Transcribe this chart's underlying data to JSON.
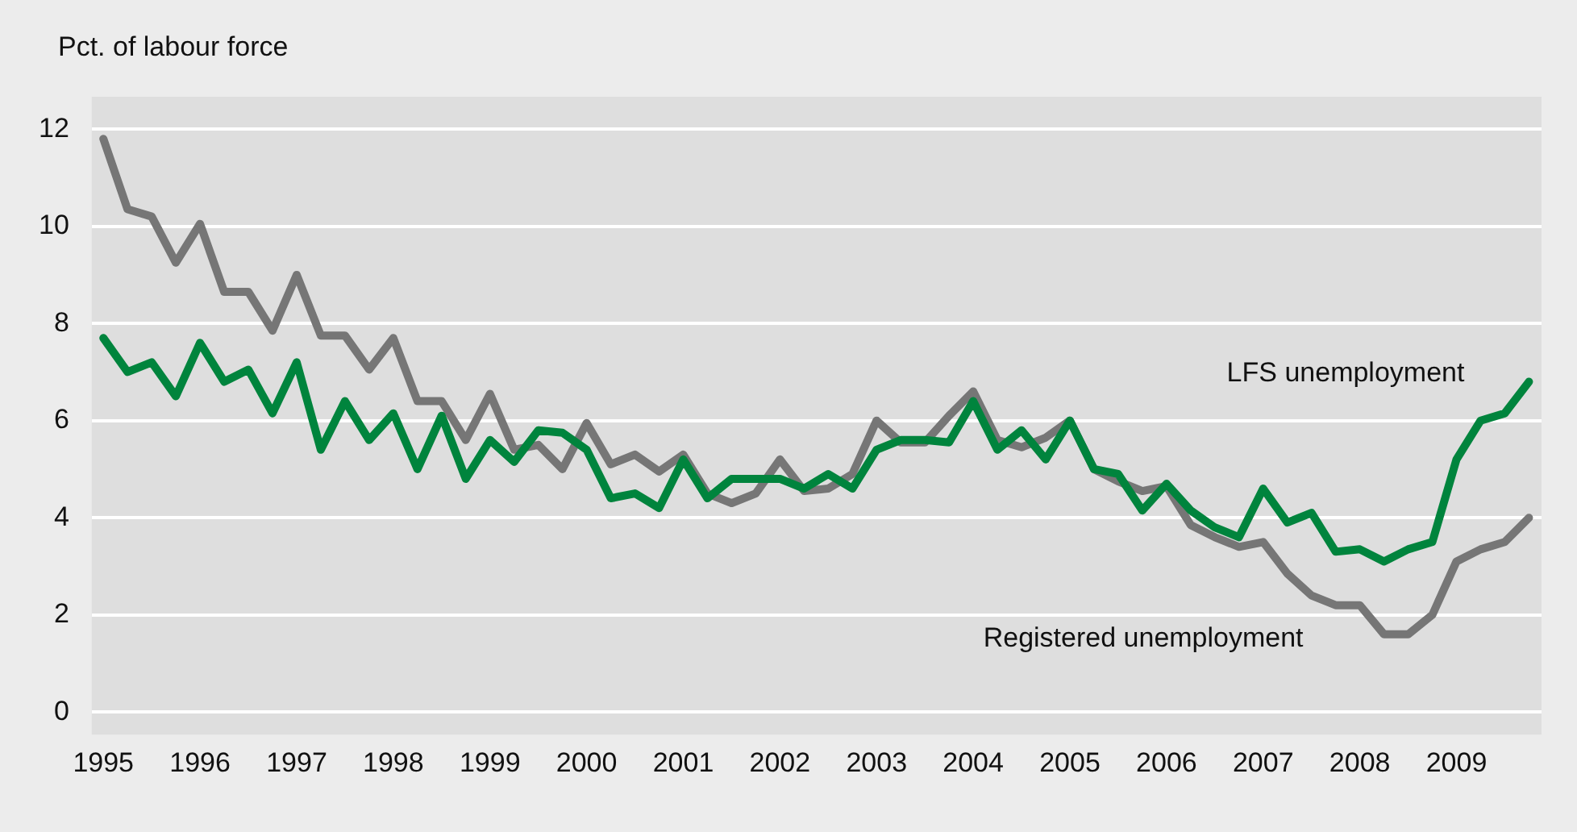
{
  "chart_data": {
    "type": "line",
    "ylabel": "Pct. of labour force",
    "x": [
      1995,
      1995.25,
      1995.5,
      1995.75,
      1996,
      1996.25,
      1996.5,
      1996.75,
      1997,
      1997.25,
      1997.5,
      1997.75,
      1998,
      1998.25,
      1998.5,
      1998.75,
      1999,
      1999.25,
      1999.5,
      1999.75,
      2000,
      2000.25,
      2000.5,
      2000.75,
      2001,
      2001.25,
      2001.5,
      2001.75,
      2002,
      2002.25,
      2002.5,
      2002.75,
      2003,
      2003.25,
      2003.5,
      2003.75,
      2004,
      2004.25,
      2004.5,
      2004.75,
      2005,
      2005.25,
      2005.5,
      2005.75,
      2006,
      2006.25,
      2006.5,
      2006.75,
      2007,
      2007.25,
      2007.5,
      2007.75,
      2008,
      2008.25,
      2008.5,
      2008.75,
      2009,
      2009.25,
      2009.5,
      2009.75
    ],
    "series": [
      {
        "name": "LFS unemployment",
        "color": "#00843d",
        "values": [
          7.7,
          7.0,
          7.2,
          6.5,
          7.6,
          6.8,
          7.05,
          6.15,
          7.2,
          5.4,
          6.4,
          5.6,
          6.15,
          5.0,
          6.1,
          4.8,
          5.6,
          5.15,
          5.8,
          5.75,
          5.4,
          4.4,
          4.5,
          4.2,
          5.2,
          4.4,
          4.8,
          4.8,
          4.8,
          4.6,
          4.9,
          4.6,
          5.4,
          5.6,
          5.6,
          5.55,
          6.4,
          5.4,
          5.8,
          5.2,
          6.0,
          5.0,
          4.9,
          4.15,
          4.7,
          4.15,
          3.8,
          3.6,
          4.6,
          3.9,
          4.1,
          3.3,
          3.35,
          3.1,
          3.35,
          3.5,
          5.2,
          6.0,
          6.15,
          6.8
        ]
      },
      {
        "name": "Registered unemployment",
        "color": "#767676",
        "values": [
          11.8,
          10.35,
          10.2,
          9.25,
          10.05,
          8.65,
          8.65,
          7.85,
          9.0,
          7.75,
          7.75,
          7.05,
          7.7,
          6.4,
          6.4,
          5.6,
          6.55,
          5.4,
          5.5,
          5.0,
          5.95,
          5.1,
          5.3,
          4.95,
          5.3,
          4.5,
          4.3,
          4.5,
          5.2,
          4.55,
          4.6,
          4.9,
          6.0,
          5.55,
          5.55,
          6.1,
          6.6,
          5.6,
          5.45,
          5.65,
          6.0,
          5.0,
          4.75,
          4.55,
          4.65,
          3.85,
          3.6,
          3.4,
          3.5,
          2.85,
          2.4,
          2.2,
          2.2,
          1.6,
          1.6,
          2.0,
          3.1,
          3.35,
          3.5,
          4.0
        ]
      }
    ],
    "xlim": [
      1994.88,
      2009.88
    ],
    "xticks": [
      1995,
      1996,
      1997,
      1998,
      1999,
      2000,
      2001,
      2002,
      2003,
      2004,
      2005,
      2006,
      2007,
      2008,
      2009
    ],
    "ylim": [
      0,
      12.6
    ],
    "yticks": [
      0,
      2,
      4,
      6,
      8,
      10,
      12
    ],
    "grid": "y",
    "legend": false,
    "marker": "none",
    "line_style": "solid"
  }
}
